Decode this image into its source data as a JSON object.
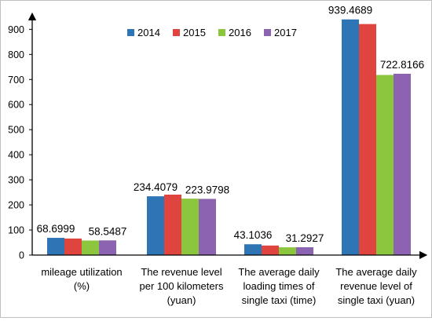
{
  "chart_data": {
    "type": "bar",
    "categories": [
      [
        "mileage utilization",
        "(%)"
      ],
      [
        "The revenue level",
        "per 100 kilometers",
        "(yuan)"
      ],
      [
        "The average daily",
        "loading times of",
        "single taxi (time)"
      ],
      [
        "The average daily",
        "revenue level of",
        "single taxi (yuan)"
      ]
    ],
    "series": [
      {
        "name": "2014",
        "color": "#2e75b6",
        "values": [
          68.6999,
          234.4079,
          43.1036,
          939.4689
        ]
      },
      {
        "name": "2015",
        "color": "#e0443e",
        "values": [
          66.0,
          241.0,
          38.0,
          921.0
        ]
      },
      {
        "name": "2016",
        "color": "#8cc63e",
        "values": [
          58.0,
          225.0,
          31.0,
          718.0
        ]
      },
      {
        "name": "2017",
        "color": "#8b63b0",
        "values": [
          58.5487,
          223.9798,
          31.2927,
          722.8166
        ]
      }
    ],
    "data_labels": [
      {
        "text": "68.6999",
        "category": 0,
        "series": 0
      },
      {
        "text": "58.5487",
        "category": 0,
        "series": 3
      },
      {
        "text": "234.4079",
        "category": 1,
        "series": 0
      },
      {
        "text": "223.9798",
        "category": 1,
        "series": 3
      },
      {
        "text": "43.1036",
        "category": 2,
        "series": 0
      },
      {
        "text": "31.2927",
        "category": 2,
        "series": 3
      },
      {
        "text": "939.4689",
        "category": 3,
        "series": 0
      },
      {
        "text": "722.8166",
        "category": 3,
        "series": 3
      }
    ],
    "yticks": [
      0,
      100,
      200,
      300,
      400,
      500,
      600,
      700,
      800,
      900
    ],
    "ylim": [
      0,
      960
    ],
    "legend_position": "top-center",
    "grid": false
  }
}
